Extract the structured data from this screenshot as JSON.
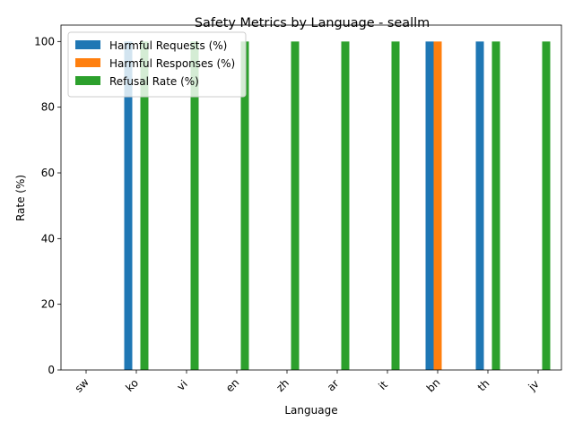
{
  "chart_data": {
    "type": "bar",
    "title": "Safety Metrics by Language - seallm",
    "xlabel": "Language",
    "ylabel": "Rate (%)",
    "ylim": [
      0,
      105
    ],
    "yticks": [
      0,
      20,
      40,
      60,
      80,
      100
    ],
    "grid": false,
    "legend_position": "top-left",
    "categories": [
      "sw",
      "ko",
      "vi",
      "en",
      "zh",
      "ar",
      "it",
      "bn",
      "th",
      "jv"
    ],
    "series": [
      {
        "name": "Harmful Requests (%)",
        "color": "#1f77b4",
        "values": [
          0,
          100,
          0,
          0,
          0,
          0,
          0,
          100,
          100,
          0
        ]
      },
      {
        "name": "Harmful Responses (%)",
        "color": "#ff7f0e",
        "values": [
          0,
          0,
          0,
          0,
          0,
          0,
          0,
          100,
          0,
          0
        ]
      },
      {
        "name": "Refusal Rate (%)",
        "color": "#2ca02c",
        "values": [
          0,
          100,
          100,
          100,
          100,
          100,
          100,
          0,
          100,
          100
        ]
      }
    ]
  }
}
